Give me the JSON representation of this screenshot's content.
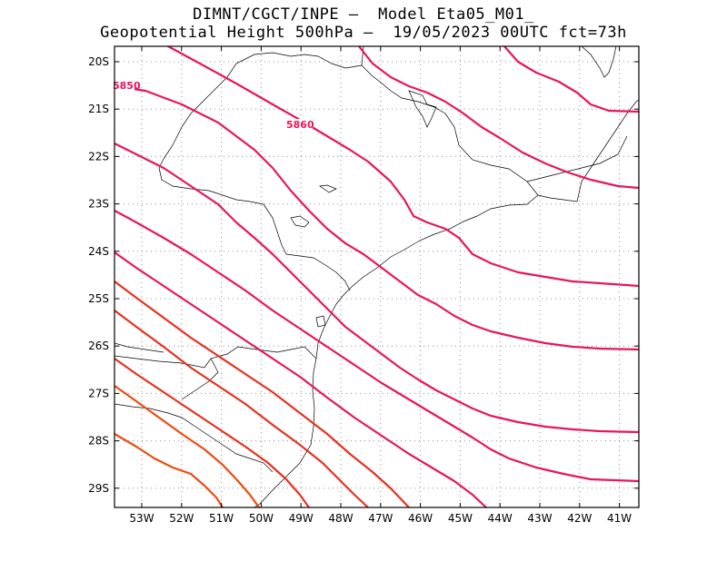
{
  "header": {
    "line1": "DIMNT/CGCT/INPE –  Model Eta05_M01_",
    "line2": "Geopotential Height 500hPa –  19/05/2023 00UTC fct=73h"
  },
  "axes": {
    "lat_labels": [
      "20S",
      "21S",
      "22S",
      "23S",
      "24S",
      "25S",
      "26S",
      "27S",
      "28S",
      "29S"
    ],
    "lon_labels": [
      "53W",
      "52W",
      "51W",
      "50W",
      "49W",
      "48W",
      "47W",
      "46W",
      "45W",
      "44W",
      "43W",
      "42W",
      "41W"
    ]
  },
  "contour_labels": [
    "5850",
    "5860"
  ],
  "colors": {
    "pink": "#e8155a",
    "red_orange": "#e8301e",
    "orange": "#ee4a10",
    "border": "#000000",
    "grid": "#909090"
  }
}
